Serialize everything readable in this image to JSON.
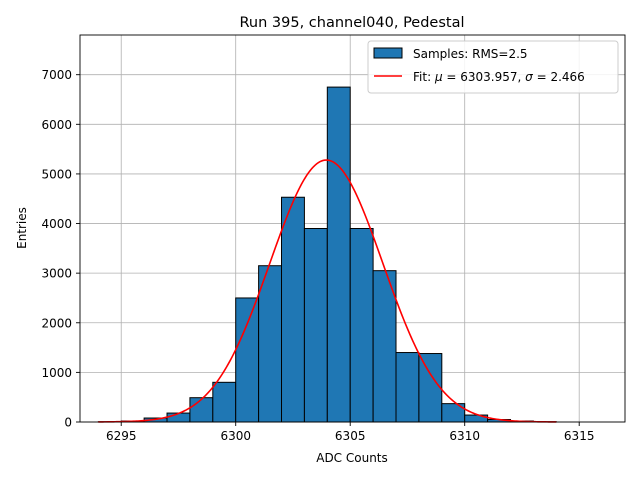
{
  "chart_data": {
    "type": "bar",
    "title": "Run 395, channel040, Pedestal",
    "xlabel": "ADC Counts",
    "ylabel": "Entries",
    "xlim": [
      6293.2,
      6317.0
    ],
    "ylim": [
      0,
      7800
    ],
    "xticks": [
      6295,
      6300,
      6305,
      6310,
      6315
    ],
    "yticks": [
      0,
      1000,
      2000,
      3000,
      4000,
      5000,
      6000,
      7000
    ],
    "grid": true,
    "legend_position": "top-right",
    "bin_width": 1,
    "bins": [
      {
        "x": 6294,
        "value": 5
      },
      {
        "x": 6295,
        "value": 20
      },
      {
        "x": 6296,
        "value": 80
      },
      {
        "x": 6297,
        "value": 180
      },
      {
        "x": 6298,
        "value": 490
      },
      {
        "x": 6299,
        "value": 800
      },
      {
        "x": 6300,
        "value": 2500
      },
      {
        "x": 6301,
        "value": 3150
      },
      {
        "x": 6302,
        "value": 4530
      },
      {
        "x": 6303,
        "value": 3900
      },
      {
        "x": 6304,
        "value": 6750
      },
      {
        "x": 6305,
        "value": 3900
      },
      {
        "x": 6306,
        "value": 3050
      },
      {
        "x": 6307,
        "value": 1400
      },
      {
        "x": 6308,
        "value": 1380
      },
      {
        "x": 6309,
        "value": 370
      },
      {
        "x": 6310,
        "value": 140
      },
      {
        "x": 6311,
        "value": 50
      },
      {
        "x": 6312,
        "value": 20
      },
      {
        "x": 6313,
        "value": 5
      }
    ],
    "fit": {
      "type": "gaussian",
      "mu": 6303.957,
      "sigma": 2.466,
      "amplitude": 5280,
      "x_range": [
        6294,
        6314
      ]
    },
    "series": [
      {
        "name": "Samples: RMS=2.5",
        "kind": "histogram",
        "color": "#1f77b4",
        "edge_color": "#000000"
      },
      {
        "name_prefix": "Fit: ",
        "name_mu": "μ",
        "name_mu_value": " = 6303.957, ",
        "name_sigma": "σ",
        "name_sigma_value": " = 2.466",
        "kind": "line",
        "color": "#ff0000"
      }
    ]
  }
}
